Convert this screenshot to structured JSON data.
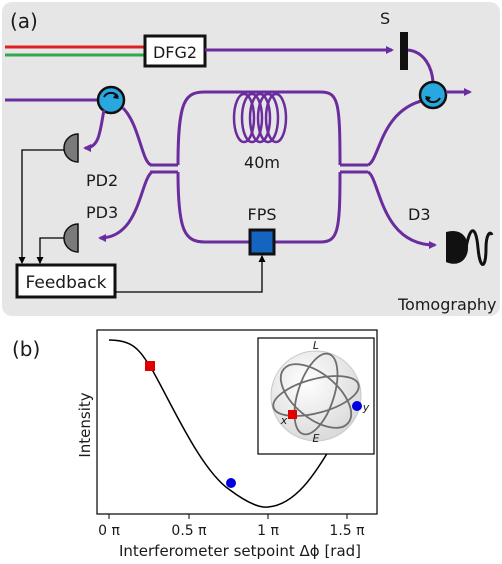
{
  "panel_a": {
    "label": "(a)",
    "dfg_label": "DFG2",
    "shutter_label": "S",
    "coil_label": "40m",
    "pd2_label": "PD2",
    "pd3_label": "PD3",
    "fps_label": "FPS",
    "d3_label": "D3",
    "feedback_label": "Feedback",
    "tomography_label": "Tomography"
  },
  "panel_b": {
    "label": "(b)",
    "ylabel": "Intensity",
    "xlabel": "Interferometer setpoint Δϕ [rad]",
    "xticks": [
      "0 π",
      "0.5 π",
      "1 π",
      "1.5 π"
    ],
    "bloch_labels": {
      "top": "L",
      "bottom": "E",
      "left": "x",
      "right": "y"
    }
  },
  "colors": {
    "beam_purple": "#6b2d9e",
    "circulator_blue": "#29a8e0",
    "fps_blue": "#1565c0",
    "laser_red": "#e02020",
    "laser_green": "#2fa84f",
    "panel_bg": "#e6e6e6",
    "marker_red": "#e00000",
    "marker_blue": "#0000dd"
  },
  "chart_data": {
    "type": "line",
    "xlabel": "Interferometer setpoint Δϕ [rad]",
    "ylabel": "Intensity",
    "xlim": [
      -0.05,
      1.6
    ],
    "xtick_labels": [
      "0 π",
      "0.5 π",
      "1 π",
      "1.5 π"
    ],
    "x_unit": "π rad",
    "curve": "cos^2 fringe, max at 0, min at 1π",
    "markers": [
      {
        "color": "red",
        "shape": "square",
        "x": 0.25
      },
      {
        "color": "blue",
        "shape": "circle",
        "x": 0.75
      }
    ]
  }
}
